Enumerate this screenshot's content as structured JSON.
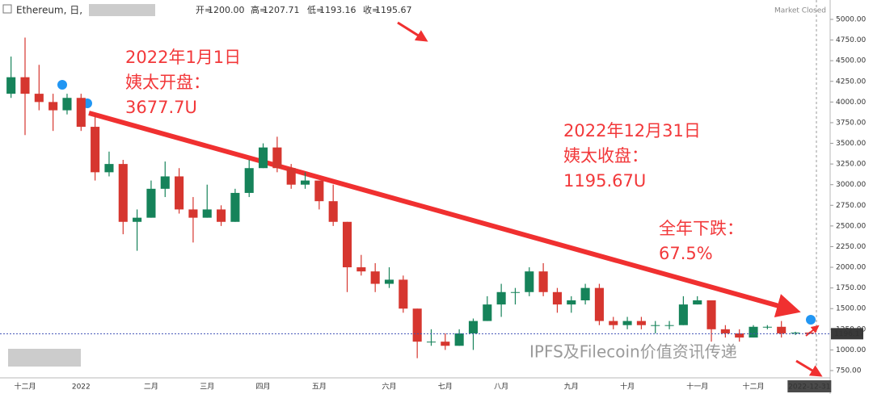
{
  "header": {
    "symbol": "Ethereum, 日,",
    "open_label": "开=",
    "open": "1200.00",
    "high_label": "高=",
    "high": "1207.71",
    "low_label": "低=",
    "low": "1193.16",
    "close_label": "收=",
    "close": "1195.67",
    "status": "Market Closed"
  },
  "watermark": "IPFS及Filecoin价值资讯传递",
  "chart_data": {
    "type": "candlestick",
    "categories": [
      null,
      "十二月",
      null,
      null,
      null,
      "2022",
      null,
      null,
      null,
      null,
      "二月",
      null,
      null,
      null,
      "三月",
      null,
      null,
      null,
      "四月",
      null,
      null,
      null,
      "五月",
      null,
      null,
      null,
      null,
      "六月",
      null,
      null,
      null,
      "七月",
      null,
      null,
      null,
      "八月",
      null,
      null,
      null,
      null,
      "九月",
      null,
      null,
      null,
      "十月",
      null,
      null,
      null,
      null,
      "十一月",
      null,
      null,
      null,
      "十二月",
      null,
      null,
      null,
      "2022-12-31"
    ],
    "series": [
      {
        "name": "Ethereum",
        "up_color": "#16835a",
        "down_color": "#d6362f",
        "open": [
          4100,
          4300,
          4100,
          4000,
          3900,
          4050,
          3700,
          3150,
          3250,
          2550,
          2600,
          2950,
          3100,
          2700,
          2600,
          2700,
          2550,
          2900,
          3200,
          3450,
          3200,
          3000,
          3050,
          2800,
          2550,
          2000,
          1950,
          1800,
          1850,
          1500,
          1100,
          1100,
          1050,
          1200,
          1350,
          1550,
          1700,
          1700,
          1950,
          1700,
          1550,
          1600,
          1750,
          1350,
          1300,
          1350,
          1300,
          1300,
          1300,
          1550,
          1600,
          1250,
          1200,
          1150,
          1280,
          1280,
          1200,
          1210
        ],
        "high": [
          4550,
          4780,
          4450,
          4100,
          4100,
          4100,
          3850,
          3400,
          3300,
          2700,
          3050,
          3280,
          3200,
          2850,
          3000,
          2750,
          2950,
          3300,
          3500,
          3580,
          3250,
          3150,
          3050,
          3000,
          2550,
          2150,
          2050,
          2000,
          1900,
          1500,
          1250,
          1200,
          1250,
          1380,
          1650,
          1800,
          1750,
          2000,
          2050,
          1750,
          1650,
          1800,
          1800,
          1400,
          1400,
          1400,
          1350,
          1350,
          1650,
          1650,
          1600,
          1300,
          1250,
          1300,
          1300,
          1350,
          1220,
          1220
        ],
        "low": [
          4050,
          3600,
          3900,
          3650,
          3850,
          3650,
          3050,
          3100,
          2400,
          2200,
          2600,
          2850,
          2650,
          2300,
          2600,
          2500,
          2550,
          2850,
          3200,
          3150,
          2950,
          2950,
          2700,
          2500,
          1700,
          1900,
          1700,
          1750,
          1450,
          900,
          1050,
          1000,
          1050,
          1000,
          1350,
          1400,
          1550,
          1650,
          1650,
          1450,
          1450,
          1550,
          1300,
          1250,
          1250,
          1250,
          1200,
          1250,
          1300,
          1550,
          1100,
          1150,
          1100,
          1150,
          1250,
          1150,
          1180,
          1190
        ],
        "close": [
          4300,
          4100,
          4000,
          3900,
          4050,
          3700,
          3150,
          3250,
          2550,
          2600,
          2950,
          3100,
          2700,
          2600,
          2700,
          2550,
          2900,
          3200,
          3450,
          3200,
          3000,
          3050,
          2800,
          2550,
          2000,
          1950,
          1800,
          1850,
          1500,
          1100,
          1100,
          1050,
          1200,
          1350,
          1550,
          1700,
          1700,
          1950,
          1700,
          1550,
          1600,
          1750,
          1350,
          1300,
          1350,
          1300,
          1300,
          1300,
          1550,
          1600,
          1250,
          1200,
          1150,
          1280,
          1280,
          1200,
          1210,
          1196
        ]
      }
    ],
    "last_price": 1196.17,
    "ylim": [
      750,
      5000
    ],
    "yticks": [
      {
        "value": 750,
        "label": "750.00"
      },
      {
        "value": 1000,
        "label": "1000.00"
      },
      {
        "value": 1250,
        "label": "1250.00"
      },
      {
        "value": 1500,
        "label": "1500.00"
      },
      {
        "value": 1750,
        "label": "1750.00"
      },
      {
        "value": 2000,
        "label": "2000.00"
      },
      {
        "value": 2250,
        "label": "2250.00"
      },
      {
        "value": 2500,
        "label": "2500.00"
      },
      {
        "value": 2750,
        "label": "2750.00"
      },
      {
        "value": 3000,
        "label": "3000.00"
      },
      {
        "value": 3250,
        "label": "3250.00"
      },
      {
        "value": 3500,
        "label": "3500.00"
      },
      {
        "value": 3750,
        "label": "3750.00"
      },
      {
        "value": 4000,
        "label": "4000.00"
      },
      {
        "value": 4250,
        "label": "4250.00"
      },
      {
        "value": 4500,
        "label": "4500.00"
      },
      {
        "value": 4750,
        "label": "4750.00"
      },
      {
        "value": 5000,
        "label": "5000.00"
      }
    ],
    "grid": false,
    "annotations": [
      [
        "2022年1月1日",
        "姨太开盘：",
        "3677.7U"
      ],
      [
        "2022年12月31日",
        "姨太收盘：",
        "1195.67U"
      ],
      [
        "全年下跌：",
        "67.5%"
      ]
    ]
  }
}
